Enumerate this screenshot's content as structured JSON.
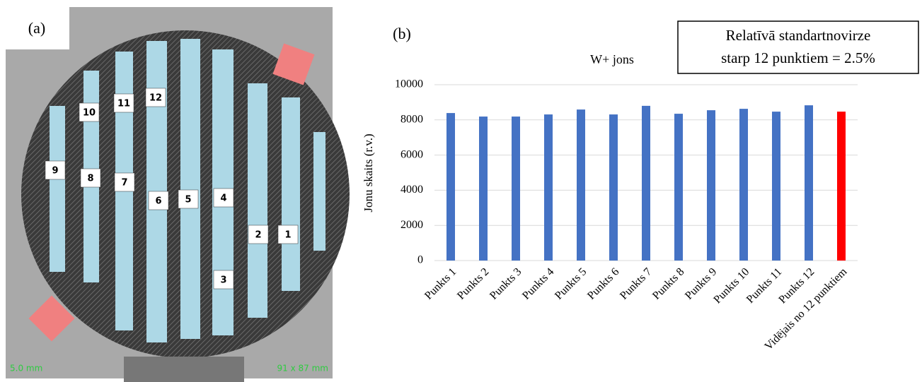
{
  "photo": {
    "label": "(a)",
    "strip_labels": [
      "1",
      "2",
      "3",
      "4",
      "5",
      "6",
      "7",
      "8",
      "9",
      "10",
      "11",
      "12"
    ],
    "scale_text": "5.0 mm",
    "size_text": "91 x 87 mm"
  },
  "chart_data": {
    "type": "bar",
    "panel_label": "(b)",
    "title": "W+ jons",
    "annotation": [
      "Relatīvā standartnovirze",
      "starp 12 punktiem = 2.5%"
    ],
    "y_label": "Jonu skaits (r.v.)",
    "categories": [
      "Punkts 1",
      "Punkts 2",
      "Punkts 3",
      "Punkts 4",
      "Punkts 5",
      "Punkts 6",
      "Punkts 7",
      "Punkts 8",
      "Punkts 9",
      "Punkts 10",
      "Punkts 11",
      "Punkts 12",
      "Vidējais no 12 punktiem"
    ],
    "values": [
      8390,
      8190,
      8190,
      8310,
      8590,
      8310,
      8800,
      8350,
      8550,
      8630,
      8470,
      8830,
      8470
    ],
    "colors": [
      "#4472c4",
      "#4472c4",
      "#4472c4",
      "#4472c4",
      "#4472c4",
      "#4472c4",
      "#4472c4",
      "#4472c4",
      "#4472c4",
      "#4472c4",
      "#4472c4",
      "#4472c4",
      "#ff0000"
    ],
    "ylim": [
      0,
      10000
    ],
    "yticks": [
      0,
      2000,
      4000,
      6000,
      8000,
      10000
    ],
    "grid": true
  }
}
